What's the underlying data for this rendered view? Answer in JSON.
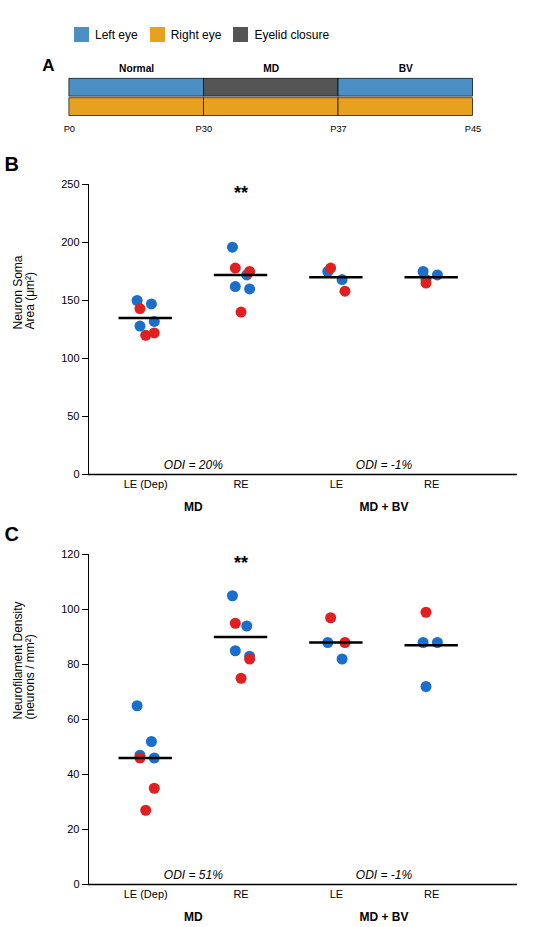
{
  "chart_data": [
    {
      "type": "timeline",
      "title": "A",
      "categories": [
        "P0",
        "P30",
        "P37",
        "P45"
      ],
      "series": [
        {
          "name": "Left eye",
          "color": "#4a90c4"
        },
        {
          "name": "Right eye",
          "color": "#e8a020"
        },
        {
          "name": "Eyelid closure",
          "color": "#555555"
        }
      ],
      "rows": [
        [
          {
            "label": "Normal",
            "start": "P0",
            "end": "P30",
            "series": "Left eye"
          },
          {
            "label": "MD",
            "start": "P30",
            "end": "P37",
            "series": "Eyelid closure"
          },
          {
            "label": "BV",
            "start": "P37",
            "end": "P45",
            "series": "Left eye"
          }
        ],
        [
          {
            "start": "P0",
            "end": "P30",
            "series": "Right eye"
          },
          {
            "start": "P30",
            "end": "P37",
            "series": "Right eye"
          },
          {
            "start": "P37",
            "end": "P45",
            "series": "Right eye"
          }
        ]
      ]
    },
    {
      "type": "scatter",
      "title": "B",
      "ylabel": "Neuron Soma\nArea (μm²)",
      "categories": [
        "LE (Dep)",
        "RE",
        "LE",
        "RE"
      ],
      "ylim": [
        0,
        250
      ],
      "yticks": [
        0,
        50,
        100,
        150,
        200,
        250
      ],
      "series": [
        {
          "color": "#1a6fca",
          "values": [
            [
              150,
              147,
              128,
              132
            ],
            [
              196,
              172,
              162,
              160
            ],
            [
              175,
              168
            ],
            [
              175,
              172,
              168
            ]
          ]
        },
        {
          "color": "#e02020",
          "values": [
            [
              143,
              122,
              120
            ],
            [
              178,
              175,
              140
            ],
            [
              178,
              158
            ],
            [
              165
            ]
          ]
        },
        {
          "type": "mean",
          "color": "black",
          "values": [
            135,
            172,
            170,
            170
          ]
        }
      ],
      "significance": [
        null,
        "**",
        null,
        null
      ],
      "groups": [
        {
          "label": "MD",
          "annotation": "ODI = 20%",
          "size": 2
        },
        {
          "label": "MD + BV",
          "annotation": "ODI = -1%",
          "size": 2
        }
      ]
    },
    {
      "type": "scatter",
      "title": "C",
      "ylabel": "Neurofilament Density\n(neurons / mm²)",
      "categories": [
        "LE (Dep)",
        "RE",
        "LE",
        "RE"
      ],
      "ylim": [
        0,
        120
      ],
      "yticks": [
        0,
        20,
        40,
        60,
        80,
        100,
        120
      ],
      "series": [
        {
          "color": "#1a6fca",
          "values": [
            [
              65,
              52,
              47,
              46
            ],
            [
              105,
              94,
              85,
              83
            ],
            [
              88,
              82
            ],
            [
              88,
              88,
              72
            ]
          ]
        },
        {
          "color": "#e02020",
          "values": [
            [
              46,
              35,
              27
            ],
            [
              95,
              82,
              75
            ],
            [
              97,
              88
            ],
            [
              99
            ]
          ]
        },
        {
          "type": "mean",
          "color": "black",
          "values": [
            46,
            90,
            88,
            87
          ]
        }
      ],
      "significance": [
        null,
        "**",
        null,
        null
      ],
      "groups": [
        {
          "label": "MD",
          "annotation": "ODI = 51%",
          "size": 2
        },
        {
          "label": "MD + BV",
          "annotation": "ODI = -1%",
          "size": 2
        }
      ]
    }
  ]
}
